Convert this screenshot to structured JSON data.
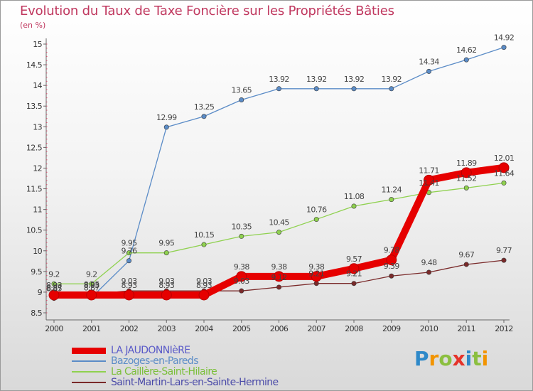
{
  "title": "Evolution du Taux de Taxe Foncière sur les Propriétés Bâties",
  "subtitle": "(en %)",
  "logo": {
    "text": "Proxiti",
    "letters": [
      {
        "ch": "P",
        "color": "#2e89c9"
      },
      {
        "ch": "r",
        "color": "#f29400"
      },
      {
        "ch": "o",
        "color": "#8bbf3f"
      },
      {
        "ch": "x",
        "color": "#e5332a"
      },
      {
        "ch": "i",
        "color": "#2e89c9"
      },
      {
        "ch": "t",
        "color": "#8bbf3f"
      },
      {
        "ch": "i",
        "color": "#f29400"
      }
    ]
  },
  "chart_data": {
    "type": "line",
    "title": "Evolution du Taux de Taxe Foncière sur les Propriétés Bâties",
    "ylabel": "(en %)",
    "xlabel": "",
    "x": [
      "2000",
      "2001",
      "2002",
      "2003",
      "2004",
      "2005",
      "2006",
      "2007",
      "2008",
      "2009",
      "2010",
      "2011",
      "2012"
    ],
    "ylim": [
      8.5,
      15
    ],
    "yticks": [
      "8.5",
      "9",
      "9.5",
      "10",
      "10.5",
      "11",
      "11.5",
      "12",
      "12.5",
      "13",
      "13.5",
      "14",
      "14.5",
      "15"
    ],
    "grid": false,
    "legend_position": "bottom-left",
    "series": [
      {
        "name": "LA JAUDONNIèRE",
        "color": "#e60000",
        "values": [
          8.93,
          8.93,
          8.93,
          8.93,
          8.93,
          9.38,
          9.38,
          9.38,
          9.57,
          9.78,
          11.71,
          11.89,
          12.01
        ],
        "labels": [
          "8.93",
          "8.93",
          "8.93",
          "8.93",
          "8.93",
          "9.38",
          "9.38",
          "9.38",
          "9.57",
          "9.78",
          "11.71",
          "11.89",
          "12.01"
        ]
      },
      {
        "name": "Bazoges-en-Pareds",
        "color": "#5b8cc7",
        "values": [
          8.87,
          8.87,
          9.76,
          12.99,
          13.25,
          13.65,
          13.92,
          13.92,
          13.92,
          13.92,
          14.34,
          14.62,
          14.92
        ],
        "labels": [
          "8.87",
          "8.87",
          "9.76",
          "12.99",
          "13.25",
          "13.65",
          "13.92",
          "13.92",
          "13.92",
          "13.92",
          "14.34",
          "14.62",
          "14.92"
        ]
      },
      {
        "name": "La Caillère-Saint-Hilaire",
        "color": "#8fd14f",
        "values": [
          9.2,
          9.2,
          9.95,
          9.95,
          10.15,
          10.35,
          10.45,
          10.76,
          11.08,
          11.24,
          11.41,
          11.52,
          11.64
        ],
        "labels": [
          "9.2",
          "9.2",
          "9.95",
          "9.95",
          "10.15",
          "10.35",
          "10.45",
          "10.76",
          "11.08",
          "11.24",
          "11.41",
          "11.52",
          "11.64"
        ]
      },
      {
        "name": "Saint-Martin-Lars-en-Sainte-Hermine",
        "color": "#7a2a2a",
        "values": [
          8.85,
          8.95,
          9.03,
          9.03,
          9.03,
          9.03,
          9.12,
          9.21,
          9.21,
          9.39,
          9.48,
          9.67,
          9.77
        ],
        "labels": [
          "8.85",
          "8.95",
          "9.03",
          "9.03",
          "9.03",
          "9.03",
          "9.12",
          "9.21",
          "9.21",
          "9.39",
          "9.48",
          "9.67",
          "9.77"
        ]
      }
    ]
  }
}
